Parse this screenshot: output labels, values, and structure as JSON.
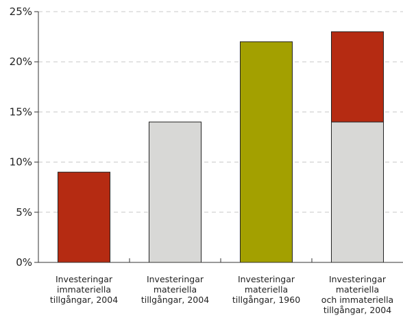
{
  "chart_data": {
    "type": "bar",
    "stacked": true,
    "title": "",
    "xlabel": "",
    "ylabel": "",
    "ylim": [
      0,
      25
    ],
    "yticks": [
      0,
      5,
      10,
      15,
      20,
      25
    ],
    "ytick_labels": [
      "0%",
      "5%",
      "10%",
      "15%",
      "20%",
      "25%"
    ],
    "grid": "horizontal dashed",
    "legend": "none",
    "categories": [
      "Investeringar\nimmateriella\ntillgångar, 2004",
      "Investeringar\nmateriella\ntillgångar, 2004",
      "Investeringar\nmateriella\ntillgångar, 1960",
      "Investeringar\nmateriella\noch immateriella\ntillgångar, 2004"
    ],
    "series": [
      {
        "values": [
          0,
          14,
          0,
          14
        ],
        "color": "#d8d8d6"
      },
      {
        "values": [
          9,
          0,
          0,
          9
        ],
        "color": "#b52b12"
      },
      {
        "values": [
          0,
          0,
          22,
          0
        ],
        "color": "#a3a000"
      }
    ],
    "colors": {
      "grid": "#c8c8c8",
      "axis": "#333333",
      "bar_outline": "#222222"
    }
  }
}
